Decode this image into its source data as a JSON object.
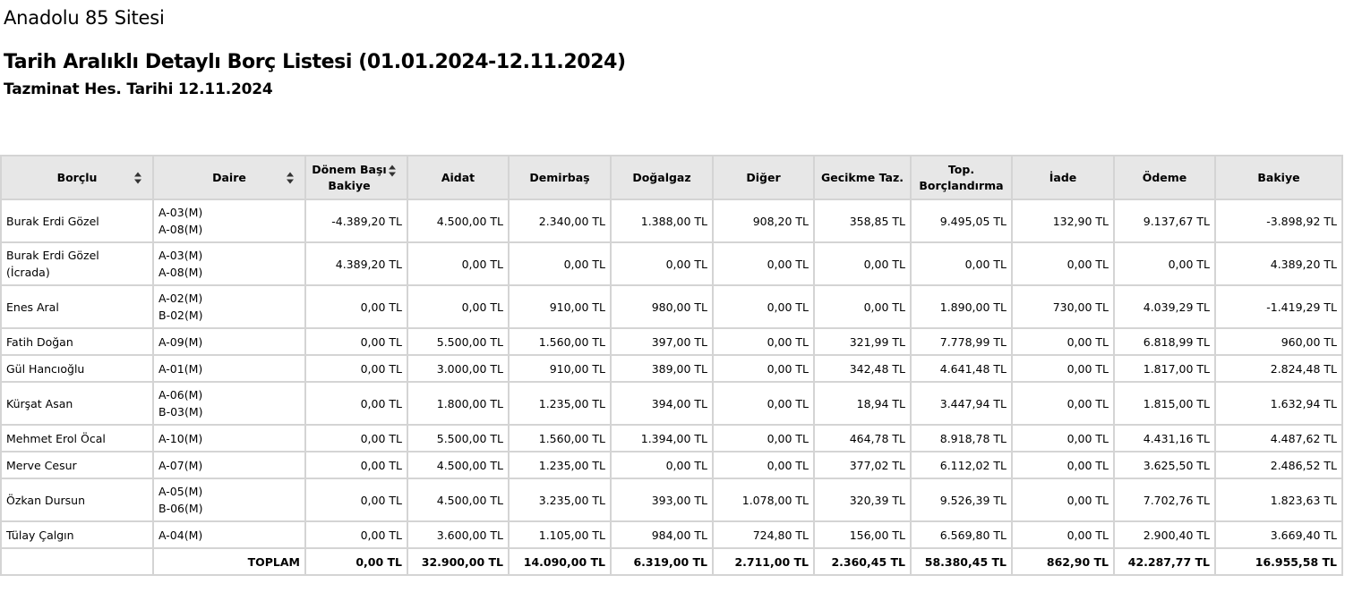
{
  "site_name": "Anadolu 85 Sitesi",
  "report_title": "Tarih Aralıklı Detaylı Borç Listesi (01.01.2024-12.11.2024)",
  "report_subtitle": "Tazminat Hes. Tarihi 12.11.2024",
  "table": {
    "headers": [
      "Borçlu",
      "Daire",
      "Dönem Başı Bakiye",
      "Aidat",
      "Demirbaş",
      "Doğalgaz",
      "Diğer",
      "Gecikme Taz.",
      "Top. Borçlandırma",
      "İade",
      "Ödeme",
      "Bakiye"
    ],
    "headers_display": {
      "donem_line1": "Dönem Başı",
      "donem_line2": "Bakiye",
      "top_line1": "Top.",
      "top_line2": "Borçlandırma"
    },
    "rows": [
      {
        "borclu": [
          "Burak Erdi Gözel"
        ],
        "daire": [
          "A-03(M)",
          "A-08(M)"
        ],
        "vals": [
          "-4.389,20 TL",
          "4.500,00 TL",
          "2.340,00 TL",
          "1.388,00 TL",
          "908,20 TL",
          "358,85 TL",
          "9.495,05 TL",
          "132,90 TL",
          "9.137,67 TL",
          "-3.898,92 TL"
        ]
      },
      {
        "borclu": [
          "Burak Erdi Gözel",
          "(İcrada)"
        ],
        "daire": [
          "A-03(M)",
          "A-08(M)"
        ],
        "vals": [
          "4.389,20 TL",
          "0,00 TL",
          "0,00 TL",
          "0,00 TL",
          "0,00 TL",
          "0,00 TL",
          "0,00 TL",
          "0,00 TL",
          "0,00 TL",
          "4.389,20 TL"
        ]
      },
      {
        "borclu": [
          "Enes Aral"
        ],
        "daire": [
          "A-02(M)",
          "B-02(M)"
        ],
        "vals": [
          "0,00 TL",
          "0,00 TL",
          "910,00 TL",
          "980,00 TL",
          "0,00 TL",
          "0,00 TL",
          "1.890,00 TL",
          "730,00 TL",
          "4.039,29 TL",
          "-1.419,29 TL"
        ]
      },
      {
        "borclu": [
          "Fatih Doğan"
        ],
        "daire": [
          "A-09(M)"
        ],
        "vals": [
          "0,00 TL",
          "5.500,00 TL",
          "1.560,00 TL",
          "397,00 TL",
          "0,00 TL",
          "321,99 TL",
          "7.778,99 TL",
          "0,00 TL",
          "6.818,99 TL",
          "960,00 TL"
        ]
      },
      {
        "borclu": [
          "Gül Hancıoğlu"
        ],
        "daire": [
          "A-01(M)"
        ],
        "vals": [
          "0,00 TL",
          "3.000,00 TL",
          "910,00 TL",
          "389,00 TL",
          "0,00 TL",
          "342,48 TL",
          "4.641,48 TL",
          "0,00 TL",
          "1.817,00 TL",
          "2.824,48 TL"
        ]
      },
      {
        "borclu": [
          "Kürşat Asan"
        ],
        "daire": [
          "A-06(M)",
          "B-03(M)"
        ],
        "vals": [
          "0,00 TL",
          "1.800,00 TL",
          "1.235,00 TL",
          "394,00 TL",
          "0,00 TL",
          "18,94 TL",
          "3.447,94 TL",
          "0,00 TL",
          "1.815,00 TL",
          "1.632,94 TL"
        ]
      },
      {
        "borclu": [
          "Mehmet Erol Öcal"
        ],
        "daire": [
          "A-10(M)"
        ],
        "vals": [
          "0,00 TL",
          "5.500,00 TL",
          "1.560,00 TL",
          "1.394,00 TL",
          "0,00 TL",
          "464,78 TL",
          "8.918,78 TL",
          "0,00 TL",
          "4.431,16 TL",
          "4.487,62 TL"
        ]
      },
      {
        "borclu": [
          "Merve Cesur"
        ],
        "daire": [
          "A-07(M)"
        ],
        "vals": [
          "0,00 TL",
          "4.500,00 TL",
          "1.235,00 TL",
          "0,00 TL",
          "0,00 TL",
          "377,02 TL",
          "6.112,02 TL",
          "0,00 TL",
          "3.625,50 TL",
          "2.486,52 TL"
        ]
      },
      {
        "borclu": [
          "Özkan Dursun"
        ],
        "daire": [
          "A-05(M)",
          "B-06(M)"
        ],
        "vals": [
          "0,00 TL",
          "4.500,00 TL",
          "3.235,00 TL",
          "393,00 TL",
          "1.078,00 TL",
          "320,39 TL",
          "9.526,39 TL",
          "0,00 TL",
          "7.702,76 TL",
          "1.823,63 TL"
        ]
      },
      {
        "borclu": [
          "Tülay Çalgın"
        ],
        "daire": [
          "A-04(M)"
        ],
        "vals": [
          "0,00 TL",
          "3.600,00 TL",
          "1.105,00 TL",
          "984,00 TL",
          "724,80 TL",
          "156,00 TL",
          "6.569,80 TL",
          "0,00 TL",
          "2.900,40 TL",
          "3.669,40 TL"
        ]
      }
    ],
    "total": {
      "label": "TOPLAM",
      "vals": [
        "0,00 TL",
        "32.900,00 TL",
        "14.090,00 TL",
        "6.319,00 TL",
        "2.711,00 TL",
        "2.360,45 TL",
        "58.380,45 TL",
        "862,90 TL",
        "42.287,77 TL",
        "16.955,58 TL"
      ]
    }
  }
}
